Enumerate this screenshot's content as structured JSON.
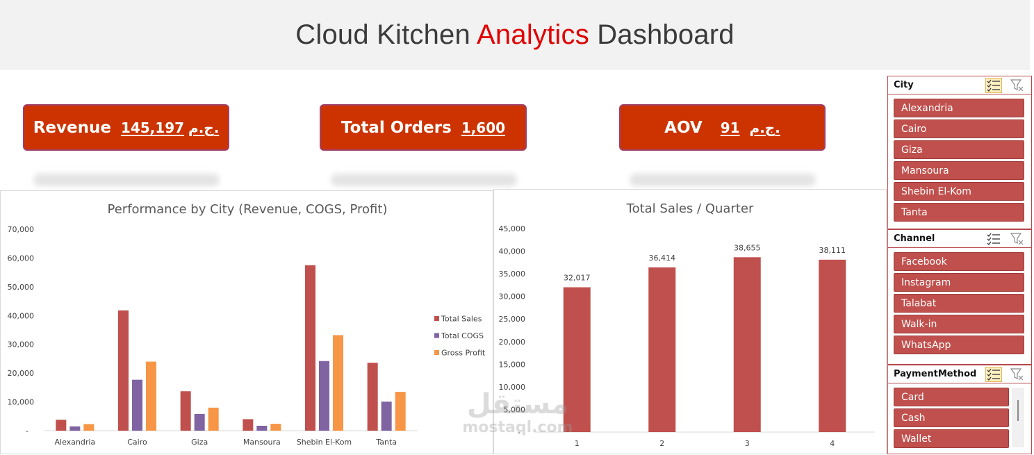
{
  "header": {
    "title_part1": "Cloud Kitchen ",
    "title_accent": "Analytics",
    "title_part2": " Dashboard"
  },
  "kpis": [
    {
      "label": "Revenue",
      "value": "145,197",
      "currency": "ج.م."
    },
    {
      "label": "Total Orders",
      "value": "1,600"
    },
    {
      "label": "AOV",
      "value": "91",
      "currency": "ج.م."
    }
  ],
  "colors": {
    "kpi_bg": "#cc3300",
    "total_sales": "#c0504d",
    "total_cogs": "#8064a2",
    "gross_profit": "#f79646",
    "slicer_item": "#c0504d",
    "title_accent": "#e00000"
  },
  "chart_data": [
    {
      "type": "bar",
      "title": "Performance by City (Revenue, COGS, Profit)",
      "categories": [
        "Alexandria",
        "Cairo",
        "Giza",
        "Mansoura",
        "Shebin El-Kom",
        "Tanta"
      ],
      "series": [
        {
          "name": "Total Sales",
          "values": [
            3800,
            41800,
            13700,
            4000,
            57500,
            23600
          ]
        },
        {
          "name": "Total COGS",
          "values": [
            1500,
            17700,
            5800,
            1700,
            24200,
            10100
          ]
        },
        {
          "name": "Gross Profit",
          "values": [
            2300,
            24000,
            8000,
            2400,
            33200,
            13500
          ]
        }
      ],
      "ylim": [
        0,
        70000
      ],
      "yticks": [
        "-",
        "10,000",
        "20,000",
        "30,000",
        "40,000",
        "50,000",
        "60,000",
        "70,000"
      ],
      "legend_position": "right",
      "grid": false
    },
    {
      "type": "bar",
      "title": "Total Sales / Quarter",
      "categories": [
        "1",
        "2",
        "3",
        "4"
      ],
      "values": [
        32017,
        36414,
        38655,
        38111
      ],
      "data_labels": [
        "32,017",
        "36,414",
        "38,655",
        "38,111"
      ],
      "ylim": [
        0,
        45000
      ],
      "yticks": [
        "-",
        "5,000",
        "10,000",
        "15,000",
        "20,000",
        "25,000",
        "30,000",
        "35,000",
        "40,000",
        "45,000"
      ],
      "grid": false
    }
  ],
  "slicers": [
    {
      "title": "City",
      "items": [
        "Alexandria",
        "Cairo",
        "Giza",
        "Mansoura",
        "Shebin El-Kom",
        "Tanta"
      ],
      "multi_select_active": true
    },
    {
      "title": "Channel",
      "items": [
        "Facebook",
        "Instagram",
        "Talabat",
        "Walk-in",
        "WhatsApp"
      ],
      "multi_select_active": false
    },
    {
      "title": "PaymentMethod",
      "items": [
        "Card",
        "Cash",
        "Wallet"
      ],
      "multi_select_active": true
    }
  ],
  "watermark": {
    "arabic": "مستقل",
    "latin": "mostaql.com"
  }
}
